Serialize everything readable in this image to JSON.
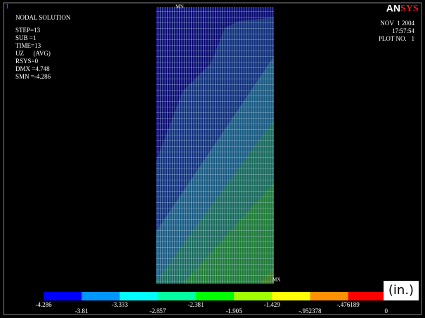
{
  "header": {
    "window_number": "1",
    "title": "NODAL SOLUTION",
    "info": [
      "STEP=13",
      "SUB =1",
      "TIME=13",
      "UZ      (AVG)",
      "RSYS=0",
      "DMX =4.748",
      "SMN =-4.286"
    ],
    "logo_an": "AN",
    "logo_sys": "SYS",
    "date": "NOV  1 2004",
    "time": "17:57:54",
    "plot": "PLOT NO.   1"
  },
  "markers": {
    "min": "MN",
    "max": "MX"
  },
  "legend": {
    "colors": [
      "#0000ff",
      "#0096ff",
      "#00ffff",
      "#00ffa0",
      "#00ff00",
      "#a0ff00",
      "#ffff00",
      "#ff9000",
      "#ff0000"
    ],
    "labels": [
      "-4.286",
      "-3.81",
      "-3.333",
      "-2.857",
      "-2.381",
      "-1.905",
      "-1.429",
      "-.952378",
      "-.476189",
      "0"
    ],
    "unit": "(in.)"
  }
}
